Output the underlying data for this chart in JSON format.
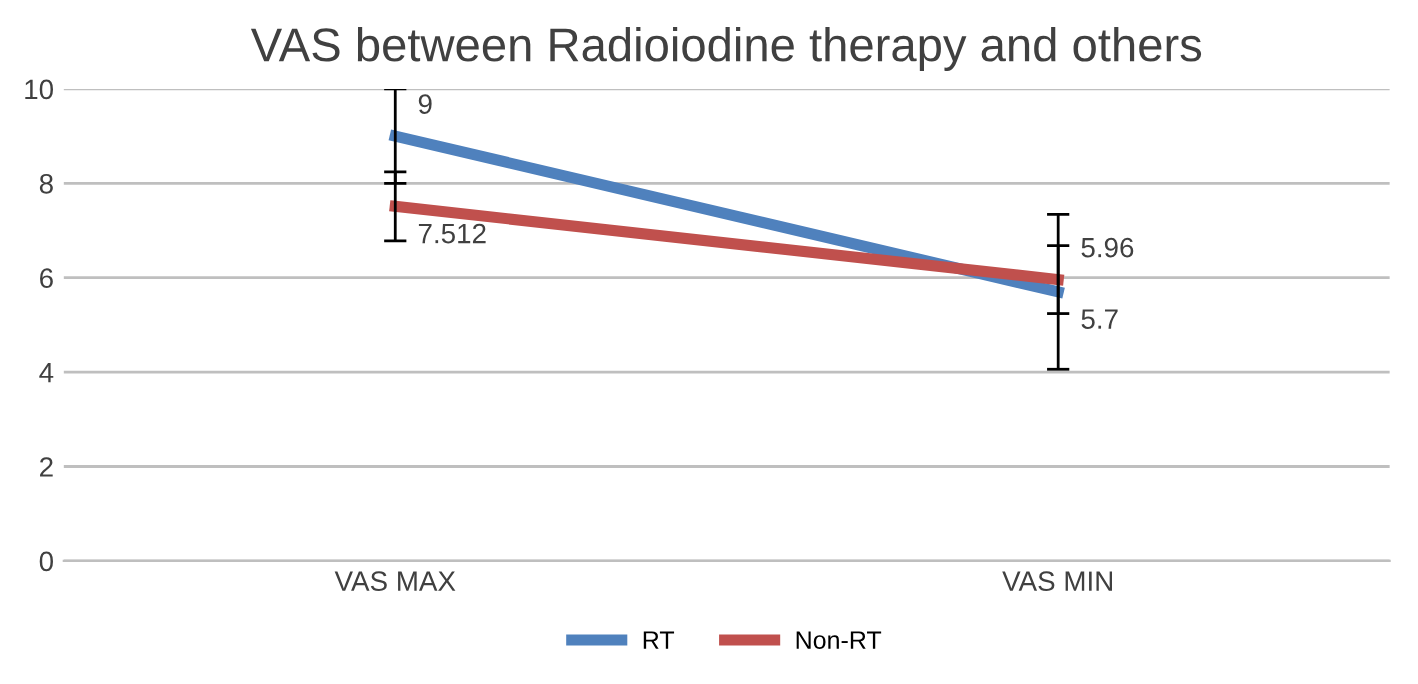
{
  "chart_data": {
    "type": "line",
    "title": "VAS between Radioiodine therapy and others",
    "categories": [
      "VAS MAX",
      "VAS MIN"
    ],
    "series": [
      {
        "name": "RT",
        "color": "#4f81bd",
        "values": [
          9,
          5.7
        ],
        "errors": [
          1.0,
          1.64
        ]
      },
      {
        "name": "Non-RT",
        "color": "#c0504d",
        "values": [
          7.512,
          5.96
        ],
        "errors": [
          0.73,
          0.72
        ]
      }
    ],
    "ylim": [
      0,
      10
    ],
    "yticks": [
      0,
      2,
      4,
      6,
      8,
      10
    ],
    "grid": "y",
    "legend": "bottom",
    "data_labels": true,
    "marker": "none",
    "line_style": "solid"
  }
}
